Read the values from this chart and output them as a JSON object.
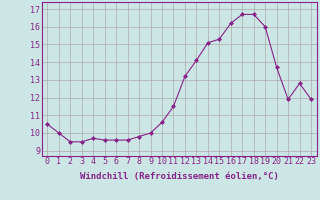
{
  "x": [
    0,
    1,
    2,
    3,
    4,
    5,
    6,
    7,
    8,
    9,
    10,
    11,
    12,
    13,
    14,
    15,
    16,
    17,
    18,
    19,
    20,
    21,
    22,
    23
  ],
  "y": [
    10.5,
    10.0,
    9.5,
    9.5,
    9.7,
    9.6,
    9.6,
    9.6,
    9.8,
    10.0,
    10.6,
    11.5,
    13.2,
    14.1,
    15.1,
    15.3,
    16.2,
    16.7,
    16.7,
    16.0,
    13.7,
    11.9,
    12.8,
    11.9
  ],
  "line_color": "#882288",
  "marker": "D",
  "marker_size": 2.0,
  "bg_color": "#cce6e6",
  "grid_color": "#aaaaaa",
  "xlabel": "Windchill (Refroidissement éolien,°C)",
  "xlabel_fontsize": 6.5,
  "tick_fontsize": 6.0,
  "ylabel_ticks": [
    9,
    10,
    11,
    12,
    13,
    14,
    15,
    16,
    17
  ],
  "ylim": [
    8.7,
    17.4
  ],
  "xlim": [
    -0.5,
    23.5
  ],
  "xticks": [
    0,
    1,
    2,
    3,
    4,
    5,
    6,
    7,
    8,
    9,
    10,
    11,
    12,
    13,
    14,
    15,
    16,
    17,
    18,
    19,
    20,
    21,
    22,
    23
  ]
}
